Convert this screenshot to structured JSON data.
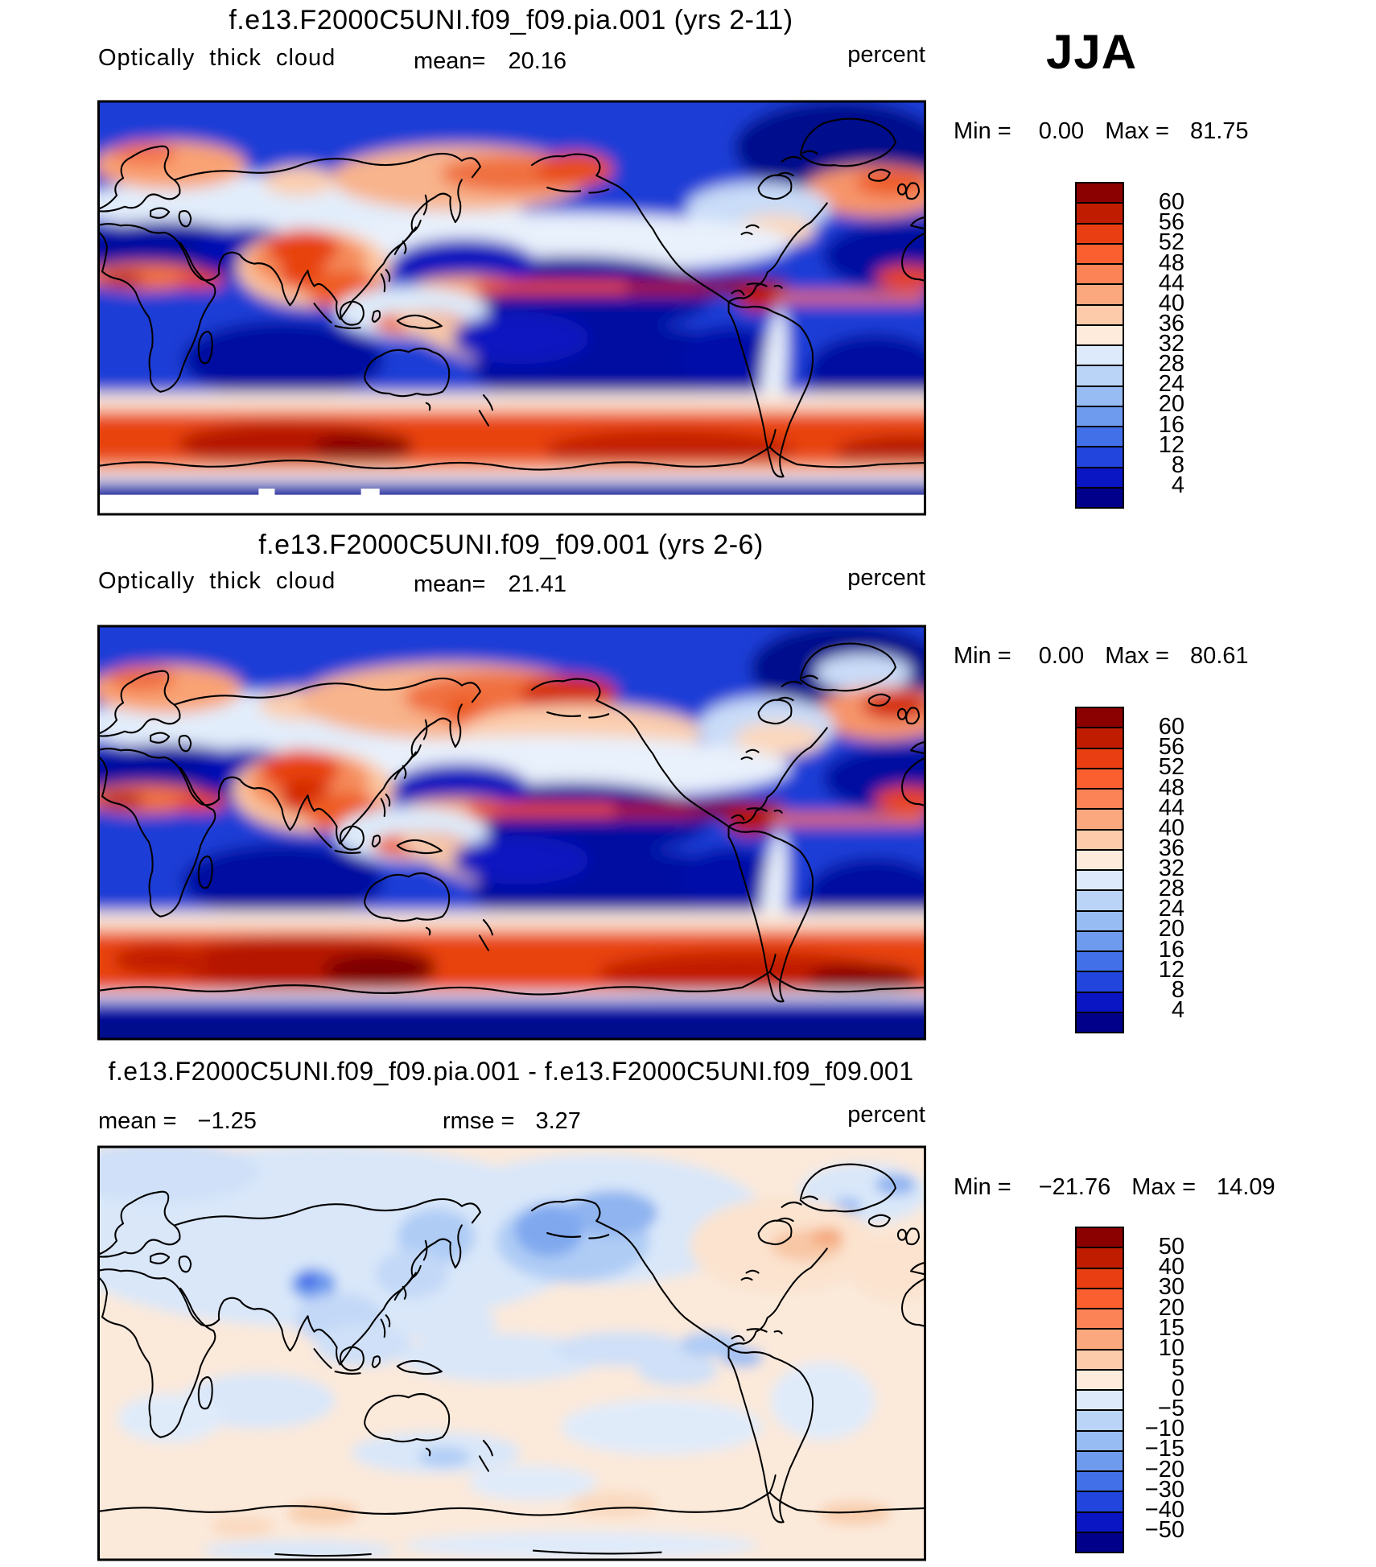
{
  "season_label": "JJA",
  "chart_data": [
    {
      "panel": "top",
      "type": "heatmap",
      "title": "f.e13.F2000C5UNI.f09_f09.pia.001 (yrs 2-11)",
      "variable": "Optically thick cloud",
      "units": "percent",
      "mean_label": "mean=",
      "mean_value": "20.16",
      "min_label": "Min =",
      "min_value": "0.00",
      "max_label": "Max =",
      "max_value": "81.75",
      "colorbar_labels": [
        "60",
        "56",
        "52",
        "48",
        "44",
        "40",
        "36",
        "32",
        "28",
        "24",
        "20",
        "16",
        "12",
        "8",
        "4"
      ],
      "levels": [
        4,
        8,
        12,
        16,
        20,
        24,
        28,
        32,
        36,
        40,
        44,
        48,
        52,
        56,
        60
      ],
      "colorbar_colors": [
        "#8B0000",
        "#C01D00",
        "#E93E12",
        "#FB5F30",
        "#FC8355",
        "#FCA87F",
        "#FDCBAA",
        "#FEEBDC",
        "#DCEAFB",
        "#BAD4F7",
        "#97BBF3",
        "#6F9BEF",
        "#4270E9",
        "#2246DD",
        "#0A16C4",
        "#00008B"
      ],
      "pattern_summary": "High values (red) over Southern Ocean storm track, eastern Pacific ITCZ, Tibet/India monsoon region, NE Siberia-Alaska and North Atlantic; low values (dark blue) over subtropical oceans, Sahara and polar oceans; Antarctic interior masked white."
    },
    {
      "panel": "middle",
      "type": "heatmap",
      "title": "f.e13.F2000C5UNI.f09_f09.001 (yrs 2-6)",
      "variable": "Optically thick cloud",
      "units": "percent",
      "mean_label": "mean=",
      "mean_value": "21.41",
      "min_label": "Min =",
      "min_value": "0.00",
      "max_label": "Max =",
      "max_value": "80.61",
      "colorbar_labels": [
        "60",
        "56",
        "52",
        "48",
        "44",
        "40",
        "36",
        "32",
        "28",
        "24",
        "20",
        "16",
        "12",
        "8",
        "4"
      ],
      "levels": [
        4,
        8,
        12,
        16,
        20,
        24,
        28,
        32,
        36,
        40,
        44,
        48,
        52,
        56,
        60
      ],
      "colorbar_colors": [
        "#8B0000",
        "#C01D00",
        "#E93E12",
        "#FB5F30",
        "#FC8355",
        "#FCA87F",
        "#FDCBAA",
        "#FEEBDC",
        "#DCEAFB",
        "#BAD4F7",
        "#97BBF3",
        "#6F9BEF",
        "#4270E9",
        "#2246DD",
        "#0A16C4",
        "#00008B"
      ],
      "pattern_summary": "Similar to top panel but with broader/stronger red band over NE Siberia, Bering Sea and Alaska, stronger North Atlantic maximum, and a thicker Southern Ocean storm-track band; Antarctic interior dark blue."
    },
    {
      "panel": "bottom",
      "type": "heatmap",
      "title": "f.e13.F2000C5UNI.f09_f09.pia.001 - f.e13.F2000C5UNI.f09_f09.001",
      "units": "percent",
      "mean_label": "mean  =",
      "mean_value": "−1.25",
      "rmse_label": "rmse =",
      "rmse_value": "3.27",
      "min_label": "Min =",
      "min_value": "−21.76",
      "max_label": "Max =",
      "max_value": "14.09",
      "colorbar_labels": [
        "50",
        "40",
        "30",
        "20",
        "15",
        "10",
        "5",
        "0",
        "−5",
        "−10",
        "−15",
        "−20",
        "−30",
        "−40",
        "−50"
      ],
      "levels": [
        -50,
        -40,
        -30,
        -20,
        -15,
        -10,
        -5,
        0,
        5,
        10,
        15,
        20,
        30,
        40,
        50
      ],
      "colorbar_colors": [
        "#8B0000",
        "#C01D00",
        "#E93E12",
        "#FB5F30",
        "#FC8355",
        "#FCA87F",
        "#FDCBAA",
        "#FEEBDC",
        "#DCEAFB",
        "#BAD4F7",
        "#97BBF3",
        "#6F9BEF",
        "#4270E9",
        "#2246DD",
        "#0A16C4",
        "#00008B"
      ],
      "pattern_summary": "Difference field is weak (mostly within ±5): pale blue (negative) across northern mid/high latitudes with stronger blue spots over Tibet, Sea of Okhotsk and Bering Sea/North Pacific; pale orange (positive) over North America, Atlantic, tropics and southern oceans."
    }
  ]
}
